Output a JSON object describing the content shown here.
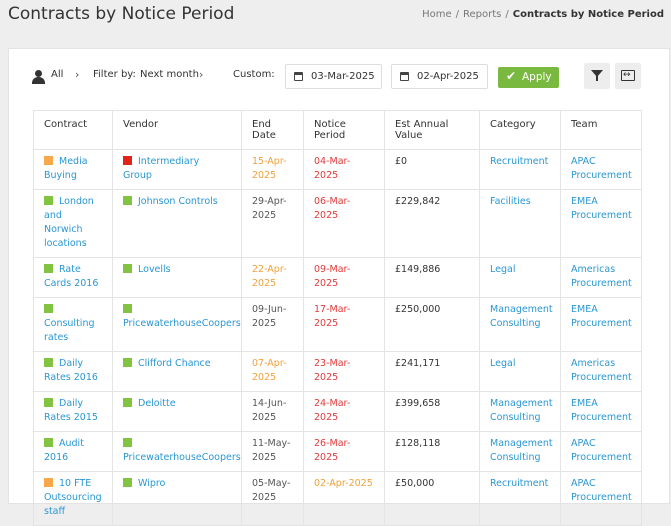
{
  "header": {
    "title": "Contracts by Notice Period",
    "breadcrumb": [
      "Home",
      "Reports",
      "Contracts by Notice Period"
    ]
  },
  "filters": {
    "owner_label": "All",
    "filter_by_label": "Filter by:",
    "filter_by_value": "Next month",
    "custom_label": "Custom:",
    "start_date": "03-Mar-2025",
    "end_date": "02-Apr-2025",
    "apply_label": "Apply"
  },
  "colors": {
    "link": "#2a97d3",
    "orange": "#f2a13a",
    "red": "#e33a3a",
    "green": "#7ab940",
    "status_green": "#82c341",
    "status_orange": "#f6a84a",
    "status_red": "#e2231a"
  },
  "table": {
    "columns": [
      "Contract",
      "Vendor",
      "End Date",
      "Notice Period",
      "Est Annual Value",
      "Category",
      "Team"
    ],
    "rows": [
      {
        "contract": "Media Buying",
        "contract_status": "orange",
        "vendor": "Intermediary Group",
        "vendor_status": "red",
        "end_date": "15-Apr-2025",
        "end_color": "orange",
        "notice": "04-Mar-2025",
        "value": "£0",
        "category": "Recruitment",
        "team": "APAC Procurement"
      },
      {
        "contract": "London and Norwich locations",
        "contract_status": "green",
        "vendor": "Johnson Controls",
        "vendor_status": "green",
        "end_date": "29-Apr-2025",
        "end_color": "grey",
        "notice": "06-Mar-2025",
        "value": "£229,842",
        "category": "Facilities",
        "team": "EMEA Procurement"
      },
      {
        "contract": "Rate Cards 2016",
        "contract_status": "green",
        "vendor": "Lovells",
        "vendor_status": "green",
        "end_date": "22-Apr-2025",
        "end_color": "orange",
        "notice": "09-Mar-2025",
        "value": "£149,886",
        "category": "Legal",
        "team": "Americas Procurement"
      },
      {
        "contract": "Consulting rates",
        "contract_status": "green",
        "vendor": "PricewaterhouseCoopers",
        "vendor_status": "green",
        "end_date": "09-Jun-2025",
        "end_color": "grey",
        "notice": "17-Mar-2025",
        "value": "£250,000",
        "category": "Management Consulting",
        "team": "EMEA Procurement"
      },
      {
        "contract": "Daily Rates 2016",
        "contract_status": "green",
        "vendor": "Clifford Chance",
        "vendor_status": "green",
        "end_date": "07-Apr-2025",
        "end_color": "orange",
        "notice": "23-Mar-2025",
        "value": "£241,171",
        "category": "Legal",
        "team": "Americas Procurement"
      },
      {
        "contract": "Daily Rates 2015",
        "contract_status": "green",
        "vendor": "Deloitte",
        "vendor_status": "green",
        "end_date": "14-Jun-2025",
        "end_color": "grey",
        "notice": "24-Mar-2025",
        "value": "£399,658",
        "category": "Management Consulting",
        "team": "EMEA Procurement"
      },
      {
        "contract": "Audit 2016",
        "contract_status": "green",
        "vendor": "PricewaterhouseCoopers",
        "vendor_status": "green",
        "end_date": "11-May-2025",
        "end_color": "grey",
        "notice": "26-Mar-2025",
        "value": "£128,118",
        "category": "Management Consulting",
        "team": "APAC Procurement"
      },
      {
        "contract": "10 FTE Outsourcing staff",
        "contract_status": "orange",
        "vendor": "Wipro",
        "vendor_status": "green",
        "end_date": "05-May-2025",
        "end_color": "grey",
        "notice": "02-Apr-2025",
        "notice_color": "orange",
        "value": "£50,000",
        "category": "Recruitment",
        "team": "APAC Procurement"
      }
    ]
  }
}
